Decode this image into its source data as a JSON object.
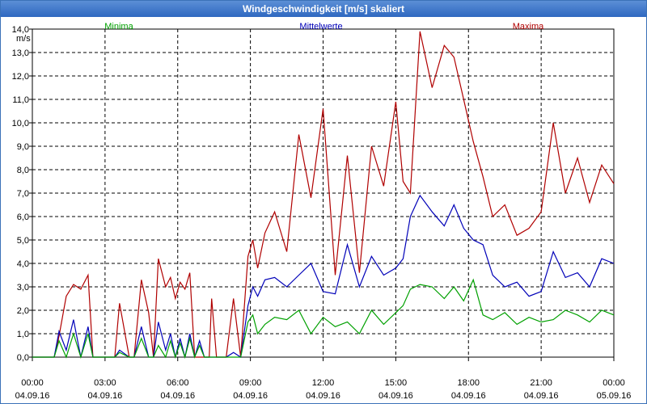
{
  "window": {
    "title": "Windgeschwindigkeit [m/s] skaliert"
  },
  "chart_data": {
    "type": "line",
    "title": "Windgeschwindigkeit [m/s] skaliert",
    "ylabel": "m/s",
    "xlabel": "",
    "ylim": [
      0,
      14
    ],
    "xlim": [
      0,
      24
    ],
    "grid": true,
    "y_ticks": [
      "0,0",
      "1,0",
      "2,0",
      "3,0",
      "4,0",
      "5,0",
      "6,0",
      "7,0",
      "8,0",
      "9,0",
      "10,0",
      "11,0",
      "12,0",
      "13,0",
      "14,0"
    ],
    "x_ticks": [
      {
        "time": "00:00",
        "date": "04.09.16"
      },
      {
        "time": "03:00",
        "date": "04.09.16"
      },
      {
        "time": "06:00",
        "date": "04.09.16"
      },
      {
        "time": "09:00",
        "date": "04.09.16"
      },
      {
        "time": "12:00",
        "date": "04.09.16"
      },
      {
        "time": "15:00",
        "date": "04.09.16"
      },
      {
        "time": "18:00",
        "date": "04.09.16"
      },
      {
        "time": "21:00",
        "date": "04.09.16"
      },
      {
        "time": "00:00",
        "date": "05.09.16"
      }
    ],
    "series": [
      {
        "name": "Minima",
        "color": "#00a000",
        "x": [
          0,
          0.9,
          1.1,
          1.4,
          1.7,
          2.0,
          2.3,
          2.5,
          3.0,
          3.4,
          3.6,
          4.0,
          4.2,
          4.5,
          4.8,
          5.0,
          5.2,
          5.5,
          5.7,
          5.9,
          6.1,
          6.3,
          6.5,
          6.7,
          6.9,
          7.1,
          7.3,
          7.4,
          7.6,
          8.0,
          8.3,
          8.6,
          8.9,
          9.1,
          9.3,
          9.6,
          10.0,
          10.5,
          11.0,
          11.5,
          12.0,
          12.5,
          13.0,
          13.5,
          14.0,
          14.5,
          15.0,
          15.3,
          15.6,
          16.0,
          16.5,
          17.0,
          17.4,
          17.8,
          18.2,
          18.6,
          19.0,
          19.5,
          20.0,
          20.5,
          21.0,
          21.5,
          22.0,
          22.5,
          23.0,
          23.5,
          24.0
        ],
        "values": [
          0.0,
          0.0,
          0.7,
          0.0,
          1.0,
          0.0,
          1.0,
          0.0,
          0.0,
          0.0,
          0.2,
          0.0,
          0.0,
          0.8,
          0.0,
          0.0,
          0.5,
          0.0,
          0.7,
          0.0,
          0.6,
          0.0,
          0.8,
          0.0,
          0.5,
          0.0,
          0.0,
          0.0,
          0.0,
          0.0,
          0.0,
          0.0,
          1.5,
          1.8,
          1.0,
          1.4,
          1.7,
          1.6,
          2.0,
          1.0,
          1.7,
          1.3,
          1.5,
          1.0,
          2.0,
          1.4,
          1.9,
          2.2,
          2.9,
          3.1,
          3.0,
          2.5,
          3.0,
          2.4,
          3.3,
          1.8,
          1.6,
          1.9,
          1.4,
          1.7,
          1.5,
          1.6,
          2.0,
          1.8,
          1.5,
          2.0,
          1.8
        ]
      },
      {
        "name": "Mittelwerte",
        "color": "#0000b8",
        "x": [
          0,
          0.9,
          1.1,
          1.4,
          1.7,
          2.0,
          2.3,
          2.5,
          3.0,
          3.4,
          3.6,
          4.0,
          4.2,
          4.5,
          4.8,
          5.0,
          5.2,
          5.5,
          5.7,
          5.9,
          6.1,
          6.3,
          6.5,
          6.7,
          6.9,
          7.1,
          7.3,
          7.4,
          7.6,
          8.0,
          8.3,
          8.6,
          8.9,
          9.1,
          9.3,
          9.6,
          10.0,
          10.5,
          11.0,
          11.5,
          12.0,
          12.5,
          13.0,
          13.5,
          14.0,
          14.5,
          15.0,
          15.3,
          15.6,
          16.0,
          16.5,
          17.0,
          17.4,
          17.8,
          18.2,
          18.6,
          19.0,
          19.5,
          20.0,
          20.5,
          21.0,
          21.5,
          22.0,
          22.5,
          23.0,
          23.5,
          24.0
        ],
        "values": [
          0.0,
          0.0,
          1.1,
          0.3,
          1.6,
          0.0,
          1.3,
          0.0,
          0.0,
          0.0,
          0.3,
          0.0,
          0.0,
          1.3,
          0.0,
          0.0,
          1.5,
          0.3,
          1.0,
          0.0,
          0.8,
          0.0,
          1.0,
          0.0,
          0.7,
          0.0,
          0.0,
          0.0,
          0.0,
          0.0,
          0.2,
          0.0,
          2.2,
          3.0,
          2.6,
          3.3,
          3.4,
          3.0,
          3.5,
          4.0,
          2.8,
          2.7,
          4.8,
          3.0,
          4.3,
          3.5,
          3.8,
          4.2,
          6.0,
          6.9,
          6.2,
          5.6,
          6.5,
          5.5,
          5.0,
          4.8,
          3.5,
          3.0,
          3.2,
          2.6,
          2.8,
          4.5,
          3.4,
          3.6,
          3.0,
          4.2,
          4.0
        ]
      },
      {
        "name": "Maxima",
        "color": "#b00000",
        "x": [
          0,
          0.9,
          1.1,
          1.4,
          1.7,
          2.0,
          2.3,
          2.5,
          3.0,
          3.4,
          3.6,
          4.0,
          4.2,
          4.5,
          4.8,
          5.0,
          5.2,
          5.5,
          5.7,
          5.9,
          6.1,
          6.3,
          6.5,
          6.7,
          6.9,
          7.1,
          7.3,
          7.4,
          7.6,
          8.0,
          8.3,
          8.6,
          8.9,
          9.1,
          9.3,
          9.6,
          10.0,
          10.5,
          11.0,
          11.5,
          12.0,
          12.5,
          13.0,
          13.5,
          14.0,
          14.5,
          15.0,
          15.3,
          15.6,
          16.0,
          16.5,
          17.0,
          17.4,
          17.8,
          18.2,
          18.6,
          19.0,
          19.5,
          20.0,
          20.5,
          21.0,
          21.5,
          22.0,
          22.5,
          23.0,
          23.5,
          24.0
        ],
        "values": [
          0.0,
          0.0,
          0.9,
          2.6,
          3.1,
          2.9,
          3.5,
          0.0,
          0.0,
          0.0,
          2.3,
          0.0,
          0.0,
          3.3,
          1.9,
          0.0,
          4.2,
          3.0,
          3.4,
          2.5,
          3.2,
          2.9,
          3.6,
          0.0,
          0.0,
          0.0,
          0.0,
          2.5,
          0.0,
          0.0,
          2.5,
          0.0,
          4.3,
          5.0,
          3.8,
          5.3,
          6.2,
          4.5,
          9.5,
          6.8,
          10.6,
          3.5,
          8.6,
          3.6,
          9.0,
          7.3,
          10.9,
          7.5,
          7.0,
          13.9,
          11.5,
          13.3,
          12.8,
          11.0,
          9.2,
          7.7,
          6.0,
          6.5,
          5.2,
          5.5,
          6.2,
          10.0,
          7.0,
          8.5,
          6.6,
          8.2,
          7.4
        ]
      }
    ]
  }
}
